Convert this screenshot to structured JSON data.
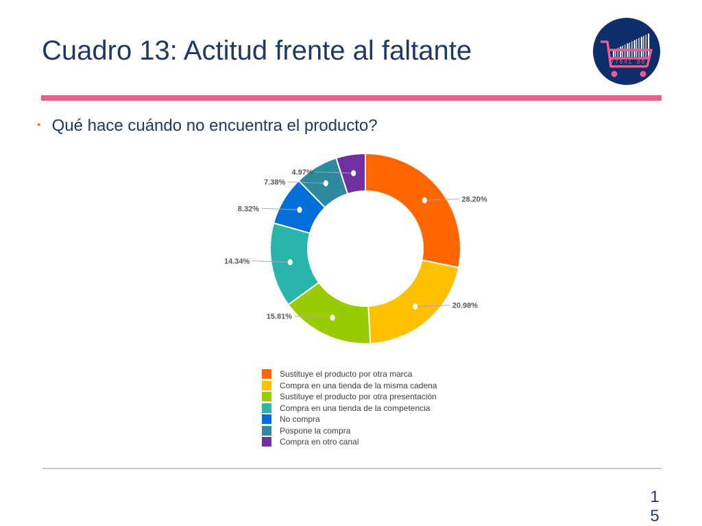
{
  "slide": {
    "title": "Cuadro 13: Actitud frente al faltante",
    "bullet": "Qué hace cuándo no encuentra el producto?",
    "page_number": "15",
    "logo": {
      "icon": "shopping-cart-barcode-icon",
      "barcode_number": "77541 08",
      "background_color": "#0d2d6b",
      "cart_color": "#ef5b8e"
    }
  },
  "chart_data": {
    "type": "pie",
    "donut": true,
    "title": "",
    "legend_position": "bottom",
    "categories": [
      "Sustituye el producto por otra marca",
      "Compra en una tienda de la misma cadena",
      "Sustituye el producto por otra presentación",
      "Compra en una tienda de la competencia",
      "No compra",
      "Pospone la compra",
      "Compra en otro canal"
    ],
    "values": [
      28.2,
      20.98,
      15.81,
      14.34,
      8.32,
      7.38,
      4.97
    ],
    "labels": [
      "28.20%",
      "20.98%",
      "15.81%",
      "14.34%",
      "8.32%",
      "7.38%",
      "4.97%"
    ],
    "colors": [
      "#ff6600",
      "#ffc000",
      "#99cc00",
      "#2bb5aa",
      "#0070d8",
      "#2e8aa0",
      "#7030a0"
    ]
  }
}
